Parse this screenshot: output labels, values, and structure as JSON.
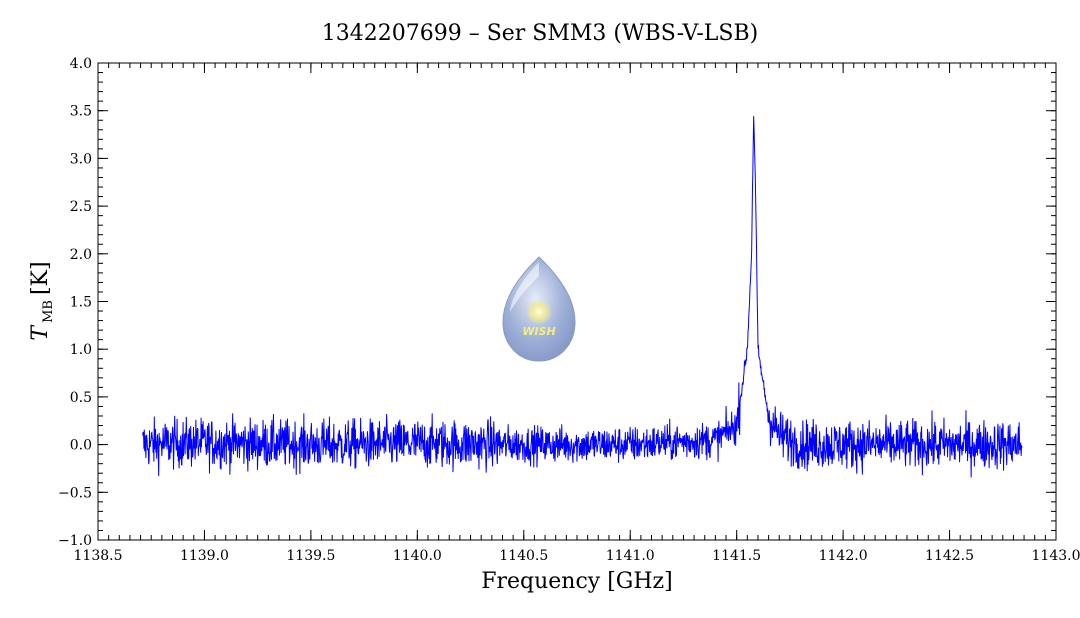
{
  "chart_data": {
    "type": "line",
    "title": "1342207699 – Ser SMM3 (WBS-V-LSB)",
    "xlabel": "Frequency [GHz]",
    "ylabel": {
      "main": "T",
      "sub": "MB",
      "unit": "[K]"
    },
    "xlim": [
      1138.5,
      1143.0
    ],
    "ylim": [
      -1.0,
      4.0
    ],
    "x_ticks": [
      {
        "value": 1138.5,
        "label": "1138.5"
      },
      {
        "value": 1139.0,
        "label": "1139.0"
      },
      {
        "value": 1139.5,
        "label": "1139.5"
      },
      {
        "value": 1140.0,
        "label": "1140.0"
      },
      {
        "value": 1140.5,
        "label": "1140.5"
      },
      {
        "value": 1141.0,
        "label": "1141.0"
      },
      {
        "value": 1141.5,
        "label": "1141.5"
      },
      {
        "value": 1142.0,
        "label": "1142.0"
      },
      {
        "value": 1142.5,
        "label": "1142.5"
      },
      {
        "value": 1143.0,
        "label": "1143.0"
      }
    ],
    "y_ticks": [
      {
        "value": -1.0,
        "label": "−1.0"
      },
      {
        "value": -0.5,
        "label": "−0.5"
      },
      {
        "value": 0.0,
        "label": "0.0"
      },
      {
        "value": 0.5,
        "label": "0.5"
      },
      {
        "value": 1.0,
        "label": "1.0"
      },
      {
        "value": 1.5,
        "label": "1.5"
      },
      {
        "value": 2.0,
        "label": "2.0"
      },
      {
        "value": 2.5,
        "label": "2.5"
      },
      {
        "value": 3.0,
        "label": "3.0"
      },
      {
        "value": 3.5,
        "label": "3.5"
      },
      {
        "value": 4.0,
        "label": "4.0"
      }
    ],
    "grid": false,
    "series": [
      {
        "color": "#0000ff",
        "x_range": [
          1138.71,
          1142.84
        ],
        "noise_rms": 0.18,
        "line_center": 1141.58,
        "peak": 3.5,
        "points": [
          [
            1138.71,
            0.0
          ],
          [
            1139.0,
            0.02
          ],
          [
            1139.5,
            0.0
          ],
          [
            1140.0,
            0.01
          ],
          [
            1140.5,
            0.0
          ],
          [
            1141.0,
            0.0
          ],
          [
            1141.4,
            0.05
          ],
          [
            1141.5,
            0.2
          ],
          [
            1141.55,
            1.0
          ],
          [
            1141.57,
            2.0
          ],
          [
            1141.58,
            3.5
          ],
          [
            1141.59,
            2.5
          ],
          [
            1141.6,
            1.0
          ],
          [
            1141.62,
            0.7
          ],
          [
            1141.65,
            0.3
          ],
          [
            1141.7,
            0.1
          ],
          [
            1141.8,
            0.0
          ],
          [
            1142.0,
            0.0
          ],
          [
            1142.5,
            0.0
          ],
          [
            1142.84,
            0.0
          ]
        ]
      }
    ]
  },
  "logo": {
    "text": "WISH"
  },
  "colors": {
    "series": "#0000ff",
    "axes": "#000000",
    "logo_fill": "#a8b8dc"
  }
}
